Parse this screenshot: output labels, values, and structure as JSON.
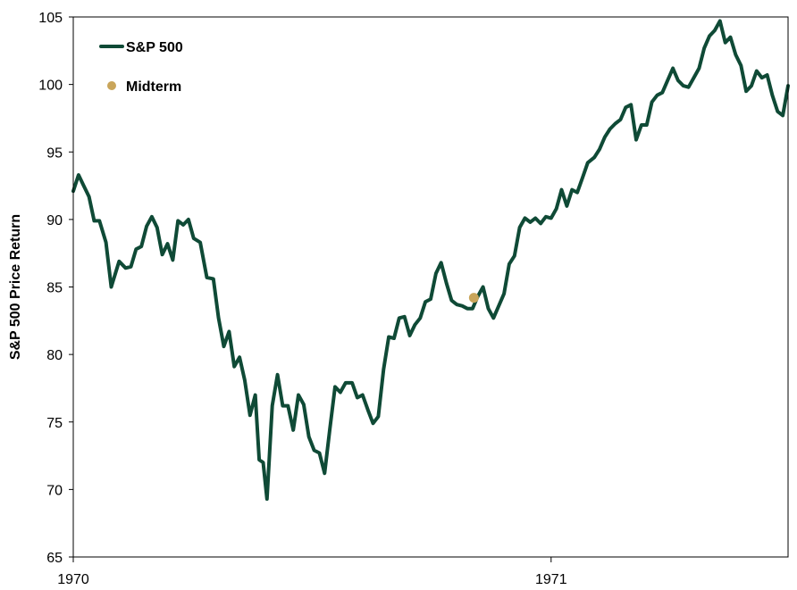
{
  "chart_data": {
    "type": "line",
    "ylabel": "S&P 500 Price Return",
    "ylim": [
      65,
      105
    ],
    "y_ticks": [
      "65",
      "70",
      "75",
      "80",
      "85",
      "90",
      "95",
      "100",
      "105"
    ],
    "x_ticks": [
      {
        "label": "1970",
        "date": "1970-01-01"
      },
      {
        "label": "1971",
        "date": "1971-01-01"
      }
    ],
    "xlim": [
      "1970-01-01",
      "1971-07-01"
    ],
    "grid": false,
    "legend_position": "top-left",
    "colors": {
      "series": "#0f4a36",
      "midterm": "#c9a55a"
    },
    "series": [
      {
        "name": "S&P 500",
        "x": [
          "1970-01-01",
          "1970-01-05",
          "1970-01-09",
          "1970-01-13",
          "1970-01-17",
          "1970-01-21",
          "1970-01-26",
          "1970-01-30",
          "1970-02-05",
          "1970-02-10",
          "1970-02-14",
          "1970-02-18",
          "1970-02-22",
          "1970-02-26",
          "1970-03-02",
          "1970-03-06",
          "1970-03-10",
          "1970-03-14",
          "1970-03-18",
          "1970-03-22",
          "1970-03-26",
          "1970-03-30",
          "1970-04-03",
          "1970-04-08",
          "1970-04-13",
          "1970-04-18",
          "1970-04-22",
          "1970-04-26",
          "1970-04-30",
          "1970-05-04",
          "1970-05-08",
          "1970-05-12",
          "1970-05-16",
          "1970-05-20",
          "1970-05-23",
          "1970-05-26",
          "1970-05-29",
          "1970-06-02",
          "1970-06-06",
          "1970-06-10",
          "1970-06-14",
          "1970-06-18",
          "1970-06-22",
          "1970-06-26",
          "1970-06-30",
          "1970-07-04",
          "1970-07-08",
          "1970-07-12",
          "1970-07-16",
          "1970-07-20",
          "1970-07-24",
          "1970-07-28",
          "1970-08-02",
          "1970-08-06",
          "1970-08-10",
          "1970-08-14",
          "1970-08-18",
          "1970-08-22",
          "1970-08-26",
          "1970-08-30",
          "1970-09-03",
          "1970-09-07",
          "1970-09-11",
          "1970-09-15",
          "1970-09-19",
          "1970-09-23",
          "1970-09-27",
          "1970-10-01",
          "1970-10-05",
          "1970-10-09",
          "1970-10-13",
          "1970-10-17",
          "1970-10-21",
          "1970-10-25",
          "1970-10-29",
          "1970-11-02",
          "1970-11-06",
          "1970-11-10",
          "1970-11-14",
          "1970-11-18",
          "1970-11-22",
          "1970-11-26",
          "1970-11-30",
          "1970-12-04",
          "1970-12-08",
          "1970-12-12",
          "1970-12-16",
          "1970-12-20",
          "1970-12-24",
          "1970-12-28",
          "1971-01-01",
          "1971-01-05",
          "1971-01-09",
          "1971-01-13",
          "1971-01-17",
          "1971-01-21",
          "1971-01-25",
          "1971-01-29",
          "1971-02-03",
          "1971-02-07",
          "1971-02-11",
          "1971-02-15",
          "1971-02-19",
          "1971-02-23",
          "1971-02-27",
          "1971-03-03",
          "1971-03-07",
          "1971-03-11",
          "1971-03-15",
          "1971-03-19",
          "1971-03-23",
          "1971-03-27",
          "1971-03-31",
          "1971-04-04",
          "1971-04-08",
          "1971-04-12",
          "1971-04-16",
          "1971-04-20",
          "1971-04-24",
          "1971-04-28",
          "1971-05-02",
          "1971-05-06",
          "1971-05-10",
          "1971-05-14",
          "1971-05-18",
          "1971-05-22",
          "1971-05-26",
          "1971-05-30",
          "1971-06-03",
          "1971-06-07",
          "1971-06-11",
          "1971-06-15",
          "1971-06-19",
          "1971-06-23",
          "1971-06-27",
          "1971-07-01"
        ],
        "y": [
          92.1,
          93.3,
          92.5,
          91.7,
          89.9,
          89.9,
          88.3,
          85.0,
          86.9,
          86.4,
          86.5,
          87.8,
          88.0,
          89.5,
          90.2,
          89.4,
          87.4,
          88.2,
          87.0,
          89.9,
          89.6,
          90.0,
          88.6,
          88.3,
          85.7,
          85.6,
          82.7,
          80.6,
          81.7,
          79.1,
          79.8,
          78.1,
          75.5,
          77.0,
          72.2,
          72.0,
          69.3,
          76.2,
          78.5,
          76.2,
          76.2,
          74.4,
          77.0,
          76.3,
          73.9,
          72.9,
          72.7,
          71.2,
          74.5,
          77.6,
          77.2,
          77.9,
          77.9,
          76.8,
          77.0,
          75.9,
          74.9,
          75.4,
          78.9,
          81.3,
          81.2,
          82.7,
          82.8,
          81.4,
          82.2,
          82.7,
          83.9,
          84.1,
          86.0,
          86.8,
          85.3,
          84.0,
          83.7,
          83.6,
          83.4,
          83.4,
          84.3,
          85.0,
          83.4,
          82.7,
          83.6,
          84.5,
          86.7,
          87.3,
          89.4,
          90.1,
          89.8,
          90.1,
          89.7,
          90.2,
          90.1,
          90.8,
          92.2,
          91.0,
          92.2,
          92.0,
          93.1,
          94.2,
          94.6,
          95.2,
          96.1,
          96.7,
          97.1,
          97.4,
          98.3,
          98.5,
          95.9,
          97.0,
          97.0,
          98.7,
          99.2,
          99.4,
          100.3,
          101.2,
          100.3,
          99.9,
          99.8,
          100.5,
          101.2,
          102.7,
          103.6,
          104.0,
          104.7,
          103.1,
          103.5,
          102.2,
          101.4,
          99.5,
          99.9,
          101.0,
          100.5,
          100.7,
          99.2,
          98.0,
          97.7,
          99.9
        ]
      }
    ],
    "markers": [
      {
        "name": "Midterm",
        "x": "1970-11-03",
        "y": 84.2
      }
    ]
  }
}
